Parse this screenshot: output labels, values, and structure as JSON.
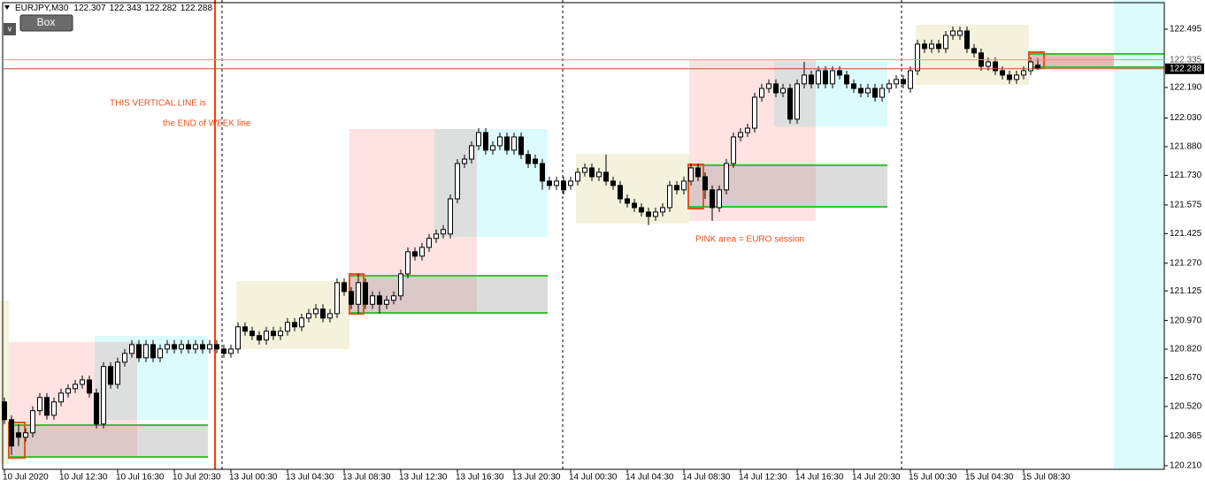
{
  "ui": {
    "symbol_menu": "v",
    "button": "Box"
  },
  "chart_data": {
    "type": "candlestick",
    "title": "EURJPY,M30",
    "annotations": [
      "THIS VERTICAL LINE is",
      "the END of WEEK line",
      "PINK  area = EURO session"
    ],
    "ask": 122.335,
    "grid": false,
    "ylim": [
      120.191,
      122.648
    ],
    "yticks": [
      122.495,
      {
        "value": 122.19,
        "label": "122.190"
      },
      {
        "value": 122.03,
        "label": "122.030"
      },
      {
        "value": 121.88,
        "label": "121.880"
      },
      {
        "value": 121.73,
        "label": "121.730"
      },
      121.575,
      121.425,
      {
        "value": 121.27,
        "label": "121.270"
      },
      121.125,
      {
        "value": 120.97,
        "label": "120.970"
      },
      {
        "value": 120.82,
        "label": "120.820"
      },
      {
        "value": 120.67,
        "label": "120.670"
      },
      {
        "value": 120.52,
        "label": "120.520"
      },
      120.365,
      {
        "value": 120.21,
        "label": "120.210"
      }
    ],
    "categories": [
      "10 Jul 2020",
      null,
      null,
      null,
      null,
      null,
      null,
      null,
      "10 Jul 12:30",
      null,
      null,
      null,
      null,
      null,
      null,
      null,
      "10 Jul 16:30",
      null,
      null,
      null,
      null,
      null,
      null,
      null,
      "10 Jul 20:30",
      null,
      null,
      null,
      null,
      null,
      null,
      null,
      "13 Jul 00:30",
      null,
      null,
      null,
      null,
      null,
      null,
      null,
      "13 Jul 04:30",
      null,
      null,
      null,
      null,
      null,
      null,
      null,
      "13 Jul 08:30",
      null,
      null,
      null,
      null,
      null,
      null,
      null,
      "13 Jul 12:30",
      null,
      null,
      null,
      null,
      null,
      null,
      null,
      "13 Jul 16:30",
      null,
      null,
      null,
      null,
      null,
      null,
      null,
      "13 Jul 20:30",
      null,
      null,
      null,
      null,
      null,
      null,
      null,
      "14 Jul 00:30",
      null,
      null,
      null,
      null,
      null,
      null,
      null,
      "14 Jul 04:30",
      null,
      null,
      null,
      null,
      null,
      null,
      null,
      "14 Jul 08:30",
      null,
      null,
      null,
      null,
      null,
      null,
      null,
      "14 Jul 12:30",
      null,
      null,
      null,
      null,
      null,
      null,
      null,
      "14 Jul 16:30",
      null,
      null,
      null,
      null,
      null,
      null,
      null,
      "14 Jul 20:30",
      null,
      null,
      null,
      null,
      null,
      null,
      null,
      "15 Jul 00:30",
      null,
      null,
      null,
      null,
      null,
      null,
      null,
      "15 Jul 04:30",
      null,
      null,
      null,
      null,
      null,
      null,
      null,
      "15 Jul 08:30",
      null,
      null
    ],
    "ohlc": [
      [
        120.544,
        120.567,
        120.428,
        120.451
      ],
      [
        120.451,
        120.474,
        120.266,
        120.313
      ],
      [
        120.382,
        120.428,
        120.313,
        120.359
      ],
      [
        120.359,
        120.405,
        120.336,
        120.382
      ],
      [
        120.382,
        120.521,
        120.359,
        120.498
      ],
      [
        120.498,
        120.59,
        120.474,
        120.567
      ],
      [
        120.567,
        120.59,
        120.451,
        120.474
      ],
      [
        120.474,
        120.567,
        120.451,
        120.544
      ],
      [
        120.544,
        120.613,
        120.521,
        120.59
      ],
      [
        120.59,
        120.636,
        120.567,
        120.613
      ],
      [
        120.613,
        120.659,
        120.59,
        120.636
      ],
      [
        120.636,
        120.682,
        120.613,
        120.659
      ],
      [
        120.659,
        120.682,
        120.567,
        120.59
      ],
      [
        120.59,
        120.613,
        120.405,
        120.428
      ],
      [
        120.428,
        120.752,
        120.405,
        120.729
      ],
      [
        120.729,
        120.752,
        120.613,
        120.636
      ],
      [
        120.636,
        120.775,
        120.613,
        120.752
      ],
      [
        120.752,
        120.821,
        120.729,
        120.798
      ],
      [
        120.798,
        120.868,
        120.775,
        120.844
      ],
      [
        120.844,
        120.868,
        120.752,
        120.775
      ],
      [
        120.775,
        120.868,
        120.752,
        120.844
      ],
      [
        120.844,
        120.868,
        120.752,
        120.775
      ],
      [
        120.775,
        120.844,
        120.752,
        120.821
      ],
      [
        120.821,
        120.868,
        120.798,
        120.844
      ],
      [
        120.844,
        120.868,
        120.798,
        120.821
      ],
      [
        120.821,
        120.868,
        120.798,
        120.844
      ],
      [
        120.844,
        120.868,
        120.798,
        120.821
      ],
      [
        120.821,
        120.868,
        120.798,
        120.844
      ],
      [
        120.844,
        120.868,
        120.798,
        120.821
      ],
      [
        120.821,
        120.868,
        120.798,
        120.844
      ],
      [
        120.844,
        120.868,
        120.798,
        120.821
      ],
      [
        120.821,
        120.844,
        120.775,
        120.798
      ],
      [
        120.798,
        120.844,
        120.775,
        120.821
      ],
      [
        120.821,
        120.96,
        120.798,
        120.937
      ],
      [
        120.937,
        120.96,
        120.891,
        120.914
      ],
      [
        120.914,
        120.937,
        120.868,
        120.891
      ],
      [
        120.891,
        120.914,
        120.844,
        120.868
      ],
      [
        120.868,
        120.937,
        120.844,
        120.914
      ],
      [
        120.914,
        120.937,
        120.868,
        120.891
      ],
      [
        120.891,
        120.937,
        120.868,
        120.914
      ],
      [
        120.914,
        120.983,
        120.891,
        120.96
      ],
      [
        120.96,
        120.983,
        120.914,
        120.937
      ],
      [
        120.937,
        121.006,
        120.914,
        120.983
      ],
      [
        120.983,
        121.03,
        120.96,
        121.006
      ],
      [
        121.006,
        121.055,
        120.983,
        121.03
      ],
      [
        121.03,
        121.055,
        120.96,
        120.983
      ],
      [
        120.983,
        121.03,
        120.96,
        121.006
      ],
      [
        121.006,
        121.191,
        120.983,
        121.168
      ],
      [
        121.168,
        121.191,
        121.099,
        121.122
      ],
      [
        121.122,
        121.145,
        121.03,
        121.055
      ],
      [
        121.055,
        121.214,
        121.006,
        121.168
      ],
      [
        121.168,
        121.191,
        121.03,
        121.055
      ],
      [
        121.055,
        121.122,
        121.03,
        121.099
      ],
      [
        121.099,
        121.122,
        121.006,
        121.055
      ],
      [
        121.055,
        121.099,
        121.03,
        121.076
      ],
      [
        121.076,
        121.122,
        121.055,
        121.099
      ],
      [
        121.099,
        121.237,
        121.076,
        121.214
      ],
      [
        121.214,
        121.353,
        121.191,
        121.33
      ],
      [
        121.33,
        121.353,
        121.284,
        121.307
      ],
      [
        121.307,
        121.376,
        121.284,
        121.353
      ],
      [
        121.353,
        121.423,
        121.33,
        121.4
      ],
      [
        121.4,
        121.446,
        121.376,
        121.423
      ],
      [
        121.423,
        121.469,
        121.4,
        121.446
      ],
      [
        121.423,
        121.63,
        121.4,
        121.607
      ],
      [
        121.607,
        121.815,
        121.584,
        121.792
      ],
      [
        121.792,
        121.839,
        121.769,
        121.815
      ],
      [
        121.815,
        121.908,
        121.792,
        121.885
      ],
      [
        121.885,
        121.977,
        121.862,
        121.954
      ],
      [
        121.954,
        121.977,
        121.839,
        121.862
      ],
      [
        121.862,
        121.908,
        121.839,
        121.885
      ],
      [
        121.885,
        121.954,
        121.862,
        121.931
      ],
      [
        121.931,
        121.954,
        121.839,
        121.862
      ],
      [
        121.862,
        121.954,
        121.839,
        121.931
      ],
      [
        121.931,
        121.954,
        121.815,
        121.839
      ],
      [
        121.839,
        121.862,
        121.769,
        121.792
      ],
      [
        121.815,
        121.839,
        121.769,
        121.792
      ],
      [
        121.792,
        121.815,
        121.654,
        121.7
      ],
      [
        121.7,
        121.723,
        121.654,
        121.677
      ],
      [
        121.677,
        121.723,
        121.654,
        121.7
      ],
      [
        121.7,
        121.723,
        121.63,
        121.654
      ],
      [
        121.677,
        121.723,
        121.654,
        121.7
      ],
      [
        121.7,
        121.769,
        121.677,
        121.746
      ],
      [
        121.746,
        121.792,
        121.723,
        121.769
      ],
      [
        121.769,
        121.792,
        121.7,
        121.723
      ],
      [
        121.723,
        121.769,
        121.7,
        121.746
      ],
      [
        121.746,
        121.839,
        121.677,
        121.7
      ],
      [
        121.7,
        121.723,
        121.654,
        121.677
      ],
      [
        121.677,
        121.7,
        121.584,
        121.607
      ],
      [
        121.607,
        121.63,
        121.561,
        121.584
      ],
      [
        121.584,
        121.607,
        121.538,
        121.561
      ],
      [
        121.561,
        121.584,
        121.515,
        121.538
      ],
      [
        121.538,
        121.561,
        121.469,
        121.515
      ],
      [
        121.515,
        121.561,
        121.492,
        121.538
      ],
      [
        121.538,
        121.584,
        121.515,
        121.561
      ],
      [
        121.561,
        121.7,
        121.538,
        121.677
      ],
      [
        121.677,
        121.7,
        121.63,
        121.654
      ],
      [
        121.654,
        121.723,
        121.63,
        121.7
      ],
      [
        121.7,
        121.792,
        121.677,
        121.769
      ],
      [
        121.769,
        121.792,
        121.7,
        121.723
      ],
      [
        121.723,
        121.746,
        121.607,
        121.654
      ],
      [
        121.654,
        121.677,
        121.492,
        121.561
      ],
      [
        121.561,
        121.677,
        121.538,
        121.654
      ],
      [
        121.654,
        121.815,
        121.63,
        121.792
      ],
      [
        121.792,
        121.954,
        121.769,
        121.931
      ],
      [
        121.931,
        121.977,
        121.908,
        121.954
      ],
      [
        121.954,
        122.0,
        121.931,
        121.977
      ],
      [
        121.977,
        122.162,
        121.954,
        122.139
      ],
      [
        122.139,
        122.209,
        122.116,
        122.185
      ],
      [
        122.185,
        122.232,
        122.162,
        122.209
      ],
      [
        122.209,
        122.232,
        122.139,
        122.162
      ],
      [
        122.162,
        122.209,
        122.139,
        122.185
      ],
      [
        122.185,
        122.209,
        122.0,
        122.024
      ],
      [
        122.024,
        122.232,
        122.0,
        122.209
      ],
      [
        122.209,
        122.324,
        122.185,
        122.255
      ],
      [
        122.255,
        122.278,
        122.185,
        122.209
      ],
      [
        122.209,
        122.301,
        122.185,
        122.278
      ],
      [
        122.278,
        122.301,
        122.185,
        122.209
      ],
      [
        122.209,
        122.301,
        122.185,
        122.278
      ],
      [
        122.278,
        122.301,
        122.232,
        122.255
      ],
      [
        122.255,
        122.278,
        122.185,
        122.209
      ],
      [
        122.209,
        122.232,
        122.162,
        122.185
      ],
      [
        122.185,
        122.209,
        122.139,
        122.162
      ],
      [
        122.162,
        122.209,
        122.139,
        122.185
      ],
      [
        122.185,
        122.209,
        122.116,
        122.139
      ],
      [
        122.139,
        122.209,
        122.116,
        122.185
      ],
      [
        122.185,
        122.232,
        122.162,
        122.209
      ],
      [
        122.209,
        122.255,
        122.185,
        122.232
      ],
      [
        122.232,
        122.255,
        122.185,
        122.209
      ],
      [
        122.185,
        122.301,
        122.162,
        122.278
      ],
      [
        122.278,
        122.44,
        122.255,
        122.417
      ],
      [
        122.417,
        122.44,
        122.371,
        122.394
      ],
      [
        122.394,
        122.44,
        122.371,
        122.417
      ],
      [
        122.417,
        122.44,
        122.371,
        122.394
      ],
      [
        122.394,
        122.486,
        122.371,
        122.463
      ],
      [
        122.463,
        122.509,
        122.44,
        122.486
      ],
      [
        122.463,
        122.509,
        122.44,
        122.486
      ],
      [
        122.486,
        122.509,
        122.371,
        122.394
      ],
      [
        122.394,
        122.417,
        122.347,
        122.371
      ],
      [
        122.371,
        122.394,
        122.278,
        122.301
      ],
      [
        122.301,
        122.347,
        122.278,
        122.324
      ],
      [
        122.324,
        122.347,
        122.255,
        122.278
      ],
      [
        122.278,
        122.301,
        122.232,
        122.255
      ],
      [
        122.255,
        122.278,
        122.209,
        122.232
      ],
      [
        122.232,
        122.278,
        122.209,
        122.255
      ],
      [
        122.255,
        122.301,
        122.232,
        122.278
      ],
      [
        122.278,
        122.347,
        122.255,
        122.324
      ],
      [
        122.307,
        122.343,
        122.282,
        122.288
      ]
    ]
  }
}
